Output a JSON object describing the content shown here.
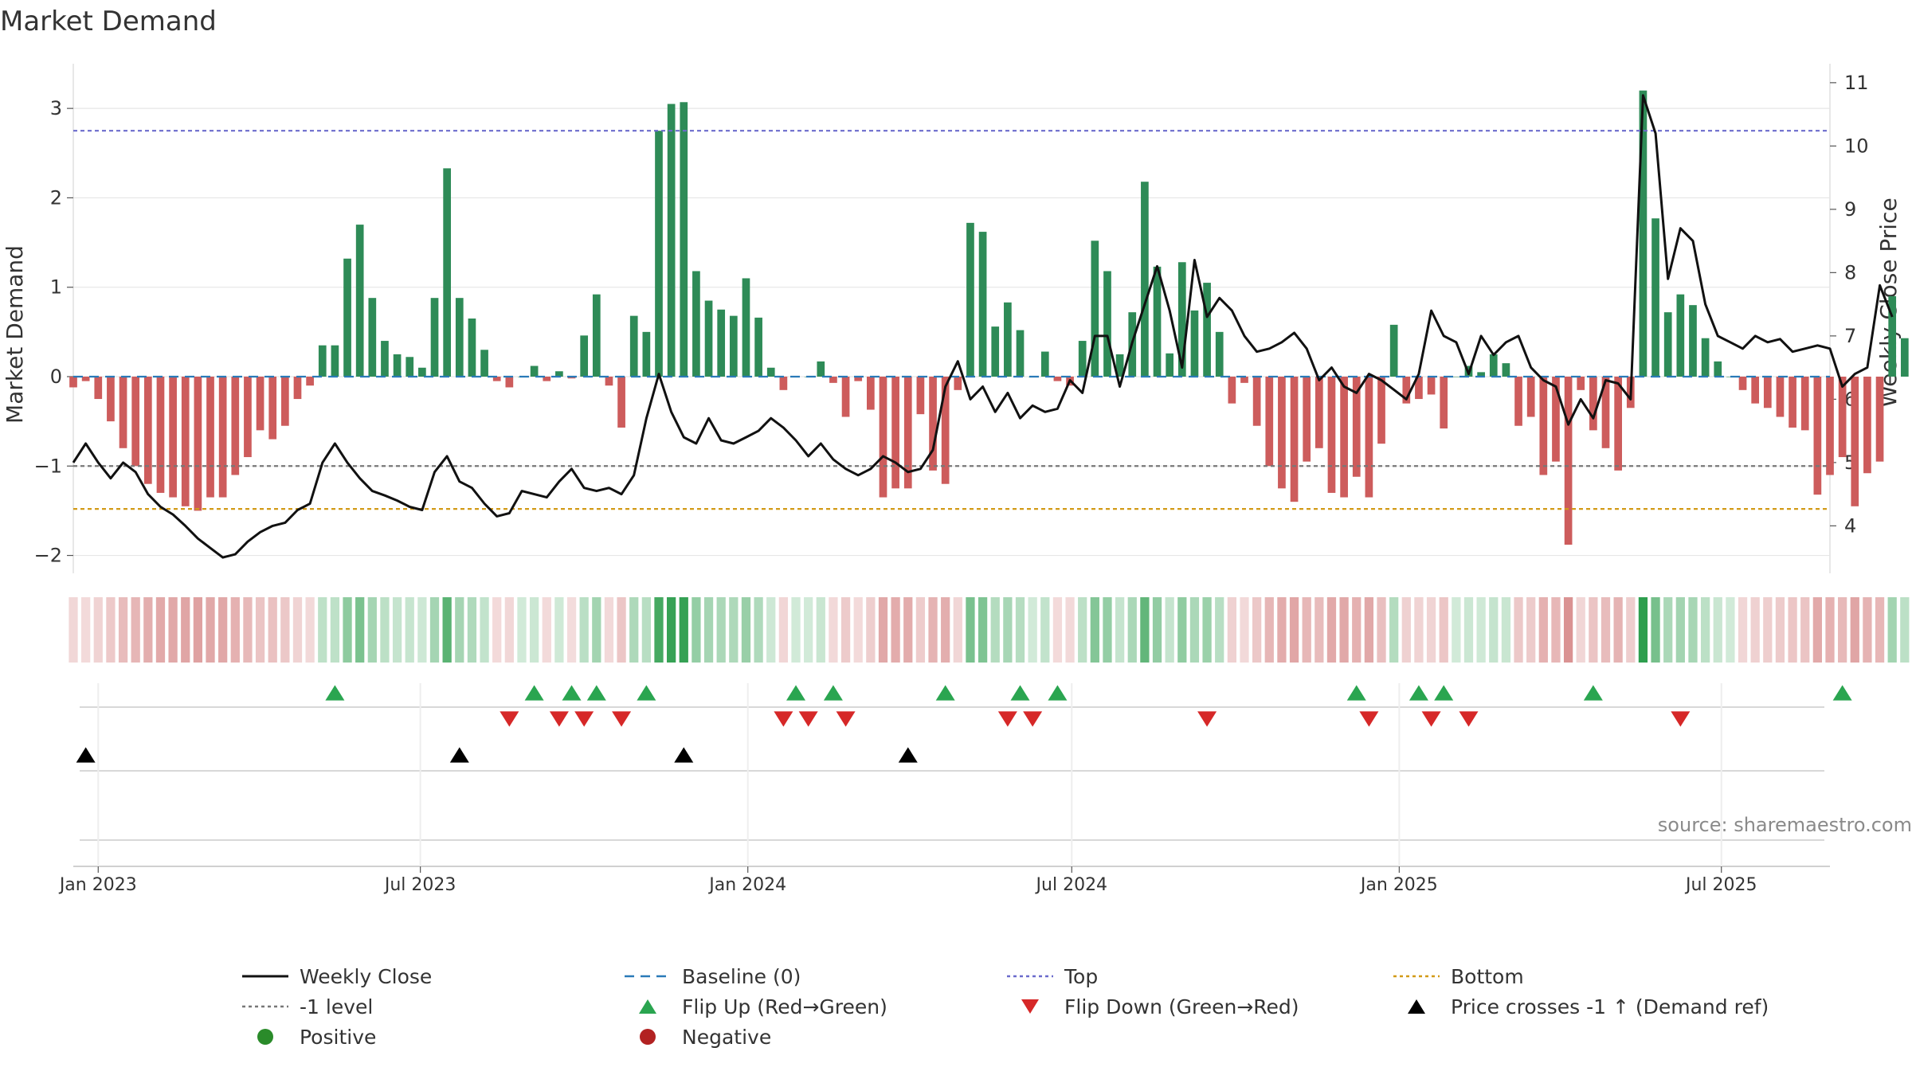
{
  "chart_data": {
    "type": "bar",
    "title": "Market Demand",
    "ylabel": "Market Demand",
    "y2label": "Weekly Close Price",
    "ylim": [
      -2.2,
      3.5
    ],
    "y2lim": [
      3.25,
      11.3
    ],
    "yticks": [
      -2,
      -1,
      0,
      1,
      2,
      3
    ],
    "y2ticks": [
      4,
      5,
      6,
      7,
      8,
      9,
      10,
      11
    ],
    "x_range": [
      "2022-12-18",
      "2025-08-31"
    ],
    "x_ticks": [
      {
        "date": "2023-01-01",
        "label": "Jan 2023"
      },
      {
        "date": "2023-07-01",
        "label": "Jul 2023"
      },
      {
        "date": "2024-01-01",
        "label": "Jan 2024"
      },
      {
        "date": "2024-07-01",
        "label": "Jul 2024"
      },
      {
        "date": "2025-01-01",
        "label": "Jan 2025"
      },
      {
        "date": "2025-07-01",
        "label": "Jul 2025"
      }
    ],
    "start_week": "2022-12-18",
    "demand_values": [
      -0.12,
      -0.05,
      -0.25,
      -0.5,
      -0.8,
      -1.0,
      -1.2,
      -1.3,
      -1.35,
      -1.45,
      -1.5,
      -1.35,
      -1.35,
      -1.1,
      -0.9,
      -0.6,
      -0.7,
      -0.55,
      -0.25,
      -0.1,
      0.35,
      0.35,
      1.32,
      1.7,
      0.88,
      0.4,
      0.25,
      0.22,
      0.1,
      0.88,
      2.33,
      0.88,
      0.65,
      0.3,
      -0.05,
      -0.12,
      0.0,
      0.12,
      -0.05,
      0.06,
      -0.02,
      0.46,
      0.92,
      -0.1,
      -0.57,
      0.68,
      0.5,
      2.75,
      3.05,
      3.07,
      1.18,
      0.85,
      0.75,
      0.68,
      1.1,
      0.66,
      0.1,
      -0.15,
      0.0,
      0.0,
      0.17,
      -0.07,
      -0.45,
      -0.05,
      -0.37,
      -1.35,
      -1.25,
      -1.25,
      -0.42,
      -1.05,
      -1.2,
      -0.15,
      1.72,
      1.62,
      0.56,
      0.83,
      0.52,
      0.0,
      0.28,
      -0.05,
      -0.1,
      0.4,
      1.52,
      1.18,
      0.25,
      0.72,
      2.18,
      1.23,
      0.26,
      1.28,
      0.74,
      1.05,
      0.5,
      -0.3,
      -0.07,
      -0.55,
      -1.0,
      -1.25,
      -1.4,
      -0.95,
      -0.8,
      -1.3,
      -1.35,
      -1.12,
      -1.35,
      -0.75,
      0.58,
      -0.3,
      -0.25,
      -0.2,
      -0.58,
      0.0,
      0.12,
      0.05,
      0.25,
      0.15,
      -0.55,
      -0.45,
      -1.1,
      -0.95,
      -1.88,
      -0.15,
      -0.6,
      -0.8,
      -1.05,
      -0.35,
      3.2,
      1.77,
      0.72,
      0.92,
      0.8,
      0.43,
      0.17,
      0.0,
      -0.15,
      -0.3,
      -0.35,
      -0.45,
      -0.57,
      -0.6,
      -1.32,
      -1.1,
      -0.9,
      -1.45,
      -1.08,
      -0.95,
      0.9,
      0.43
    ],
    "close_values": [
      5.0,
      5.3,
      5.0,
      4.75,
      5.0,
      4.85,
      4.5,
      4.3,
      4.18,
      4.0,
      3.8,
      3.65,
      3.5,
      3.55,
      3.75,
      3.9,
      4.0,
      4.05,
      4.25,
      4.35,
      5.0,
      5.3,
      5.0,
      4.75,
      4.55,
      4.48,
      4.4,
      4.3,
      4.25,
      4.85,
      5.1,
      4.7,
      4.6,
      4.35,
      4.15,
      4.2,
      4.55,
      4.5,
      4.45,
      4.7,
      4.9,
      4.6,
      4.55,
      4.6,
      4.5,
      4.8,
      5.7,
      6.4,
      5.8,
      5.4,
      5.3,
      5.7,
      5.35,
      5.3,
      5.4,
      5.5,
      5.7,
      5.55,
      5.35,
      5.1,
      5.3,
      5.05,
      4.9,
      4.8,
      4.9,
      5.1,
      5.0,
      4.85,
      4.9,
      5.2,
      6.2,
      6.6,
      6.0,
      6.2,
      5.8,
      6.1,
      5.7,
      5.9,
      5.8,
      5.85,
      6.3,
      6.1,
      7.0,
      7.0,
      6.2,
      6.9,
      7.5,
      8.1,
      7.4,
      6.5,
      8.2,
      7.3,
      7.6,
      7.4,
      7.0,
      6.75,
      6.8,
      6.9,
      7.05,
      6.8,
      6.3,
      6.5,
      6.2,
      6.1,
      6.4,
      6.3,
      6.15,
      6.0,
      6.4,
      7.4,
      7.0,
      6.9,
      6.4,
      7.0,
      6.7,
      6.9,
      7.0,
      6.5,
      6.3,
      6.2,
      5.6,
      6.0,
      5.7,
      6.3,
      6.25,
      6.0,
      10.8,
      10.2,
      7.9,
      8.7,
      8.5,
      7.5,
      7.0,
      6.9,
      6.8,
      7.0,
      6.9,
      6.95,
      6.75,
      6.8,
      6.85,
      6.8,
      6.2,
      6.4,
      6.5,
      7.8,
      7.3
    ],
    "reference_lines": {
      "baseline": 0,
      "minus_one_level": -1,
      "top": 2.75,
      "bottom": -1.48
    },
    "markers": {
      "flip_up_weeks": [
        21,
        37,
        40,
        42,
        46,
        58,
        61,
        70,
        76,
        79,
        103,
        108,
        110,
        122,
        142
      ],
      "flip_down_weeks": [
        35,
        39,
        41,
        44,
        57,
        59,
        62,
        75,
        77,
        91,
        104,
        109,
        112,
        129
      ],
      "price_cross_weeks": [
        1,
        31,
        49,
        67
      ]
    },
    "legend": [
      {
        "label": "Weekly Close",
        "kind": "solid-line",
        "color": "#111111"
      },
      {
        "label": "Baseline (0)",
        "kind": "dash-line",
        "color": "#2a7ab8"
      },
      {
        "label": "Top",
        "kind": "dot-line",
        "color": "#6b6bcc"
      },
      {
        "label": "Bottom",
        "kind": "dot-line",
        "color": "#d29a17"
      },
      {
        "label": "-1 level",
        "kind": "dot-line",
        "color": "#777777"
      },
      {
        "label": "Flip Up (Red→Green)",
        "kind": "triangle-up",
        "color": "#2aa550"
      },
      {
        "label": "Flip Down (Green→Red)",
        "kind": "triangle-down",
        "color": "#d62828"
      },
      {
        "label": "Price crosses -1 ↑ (Demand ref)",
        "kind": "triangle-up",
        "color": "#000000"
      },
      {
        "label": "Positive",
        "kind": "circle",
        "color": "#2a8b2a"
      },
      {
        "label": "Negative",
        "kind": "circle",
        "color": "#b22222"
      }
    ],
    "colors": {
      "positive_bar": "#2e8b57",
      "negative_bar": "#cd5c5c",
      "heat_positive": "#2e9e4e",
      "heat_negative": "#c96060",
      "close_line": "#111111",
      "grid": "#e6e6e6"
    },
    "source": "source: sharemaestro.com"
  }
}
